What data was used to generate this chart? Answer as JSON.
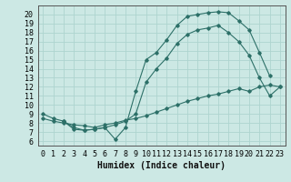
{
  "xlabel": "Humidex (Indice chaleur)",
  "xlim": [
    -0.5,
    23.5
  ],
  "ylim": [
    5.5,
    21.0
  ],
  "xticks": [
    0,
    1,
    2,
    3,
    4,
    5,
    6,
    7,
    8,
    9,
    10,
    11,
    12,
    13,
    14,
    15,
    16,
    17,
    18,
    19,
    20,
    21,
    22,
    23
  ],
  "yticks": [
    6,
    7,
    8,
    9,
    10,
    11,
    12,
    13,
    14,
    15,
    16,
    17,
    18,
    19,
    20
  ],
  "bg_color": "#cce8e4",
  "grid_color": "#aed4cf",
  "line_color": "#2d7068",
  "line1_x": [
    0,
    1,
    2,
    3,
    4,
    5,
    6,
    7,
    8,
    9,
    10,
    11,
    12,
    13,
    14,
    15,
    16,
    17,
    18,
    19,
    20,
    21,
    22
  ],
  "line1_y": [
    9.0,
    8.5,
    8.2,
    7.3,
    7.2,
    7.3,
    7.5,
    6.2,
    7.5,
    11.5,
    15.0,
    15.8,
    17.2,
    18.8,
    19.8,
    20.0,
    20.2,
    20.3,
    20.2,
    19.3,
    18.3,
    15.8,
    13.2
  ],
  "line2_x": [
    2,
    3,
    4,
    5,
    6,
    7,
    8,
    9,
    10,
    11,
    12,
    13,
    14,
    15,
    16,
    17,
    18,
    19,
    20,
    21,
    22,
    23
  ],
  "line2_y": [
    8.2,
    7.5,
    7.2,
    7.3,
    7.5,
    7.8,
    8.2,
    9.0,
    12.5,
    14.0,
    15.2,
    16.8,
    17.8,
    18.3,
    18.5,
    18.8,
    18.0,
    17.0,
    15.5,
    13.0,
    11.0,
    12.0
  ],
  "line3_x": [
    0,
    1,
    2,
    3,
    4,
    5,
    6,
    7,
    8,
    9,
    10,
    11,
    12,
    13,
    14,
    15,
    16,
    17,
    18,
    19,
    20,
    21,
    22,
    23
  ],
  "line3_y": [
    8.5,
    8.2,
    8.0,
    7.8,
    7.7,
    7.5,
    7.8,
    8.0,
    8.3,
    8.5,
    8.8,
    9.2,
    9.6,
    10.0,
    10.4,
    10.7,
    11.0,
    11.2,
    11.5,
    11.8,
    11.5,
    12.0,
    12.2,
    12.0
  ],
  "tick_fontsize": 6,
  "xlabel_fontsize": 7
}
